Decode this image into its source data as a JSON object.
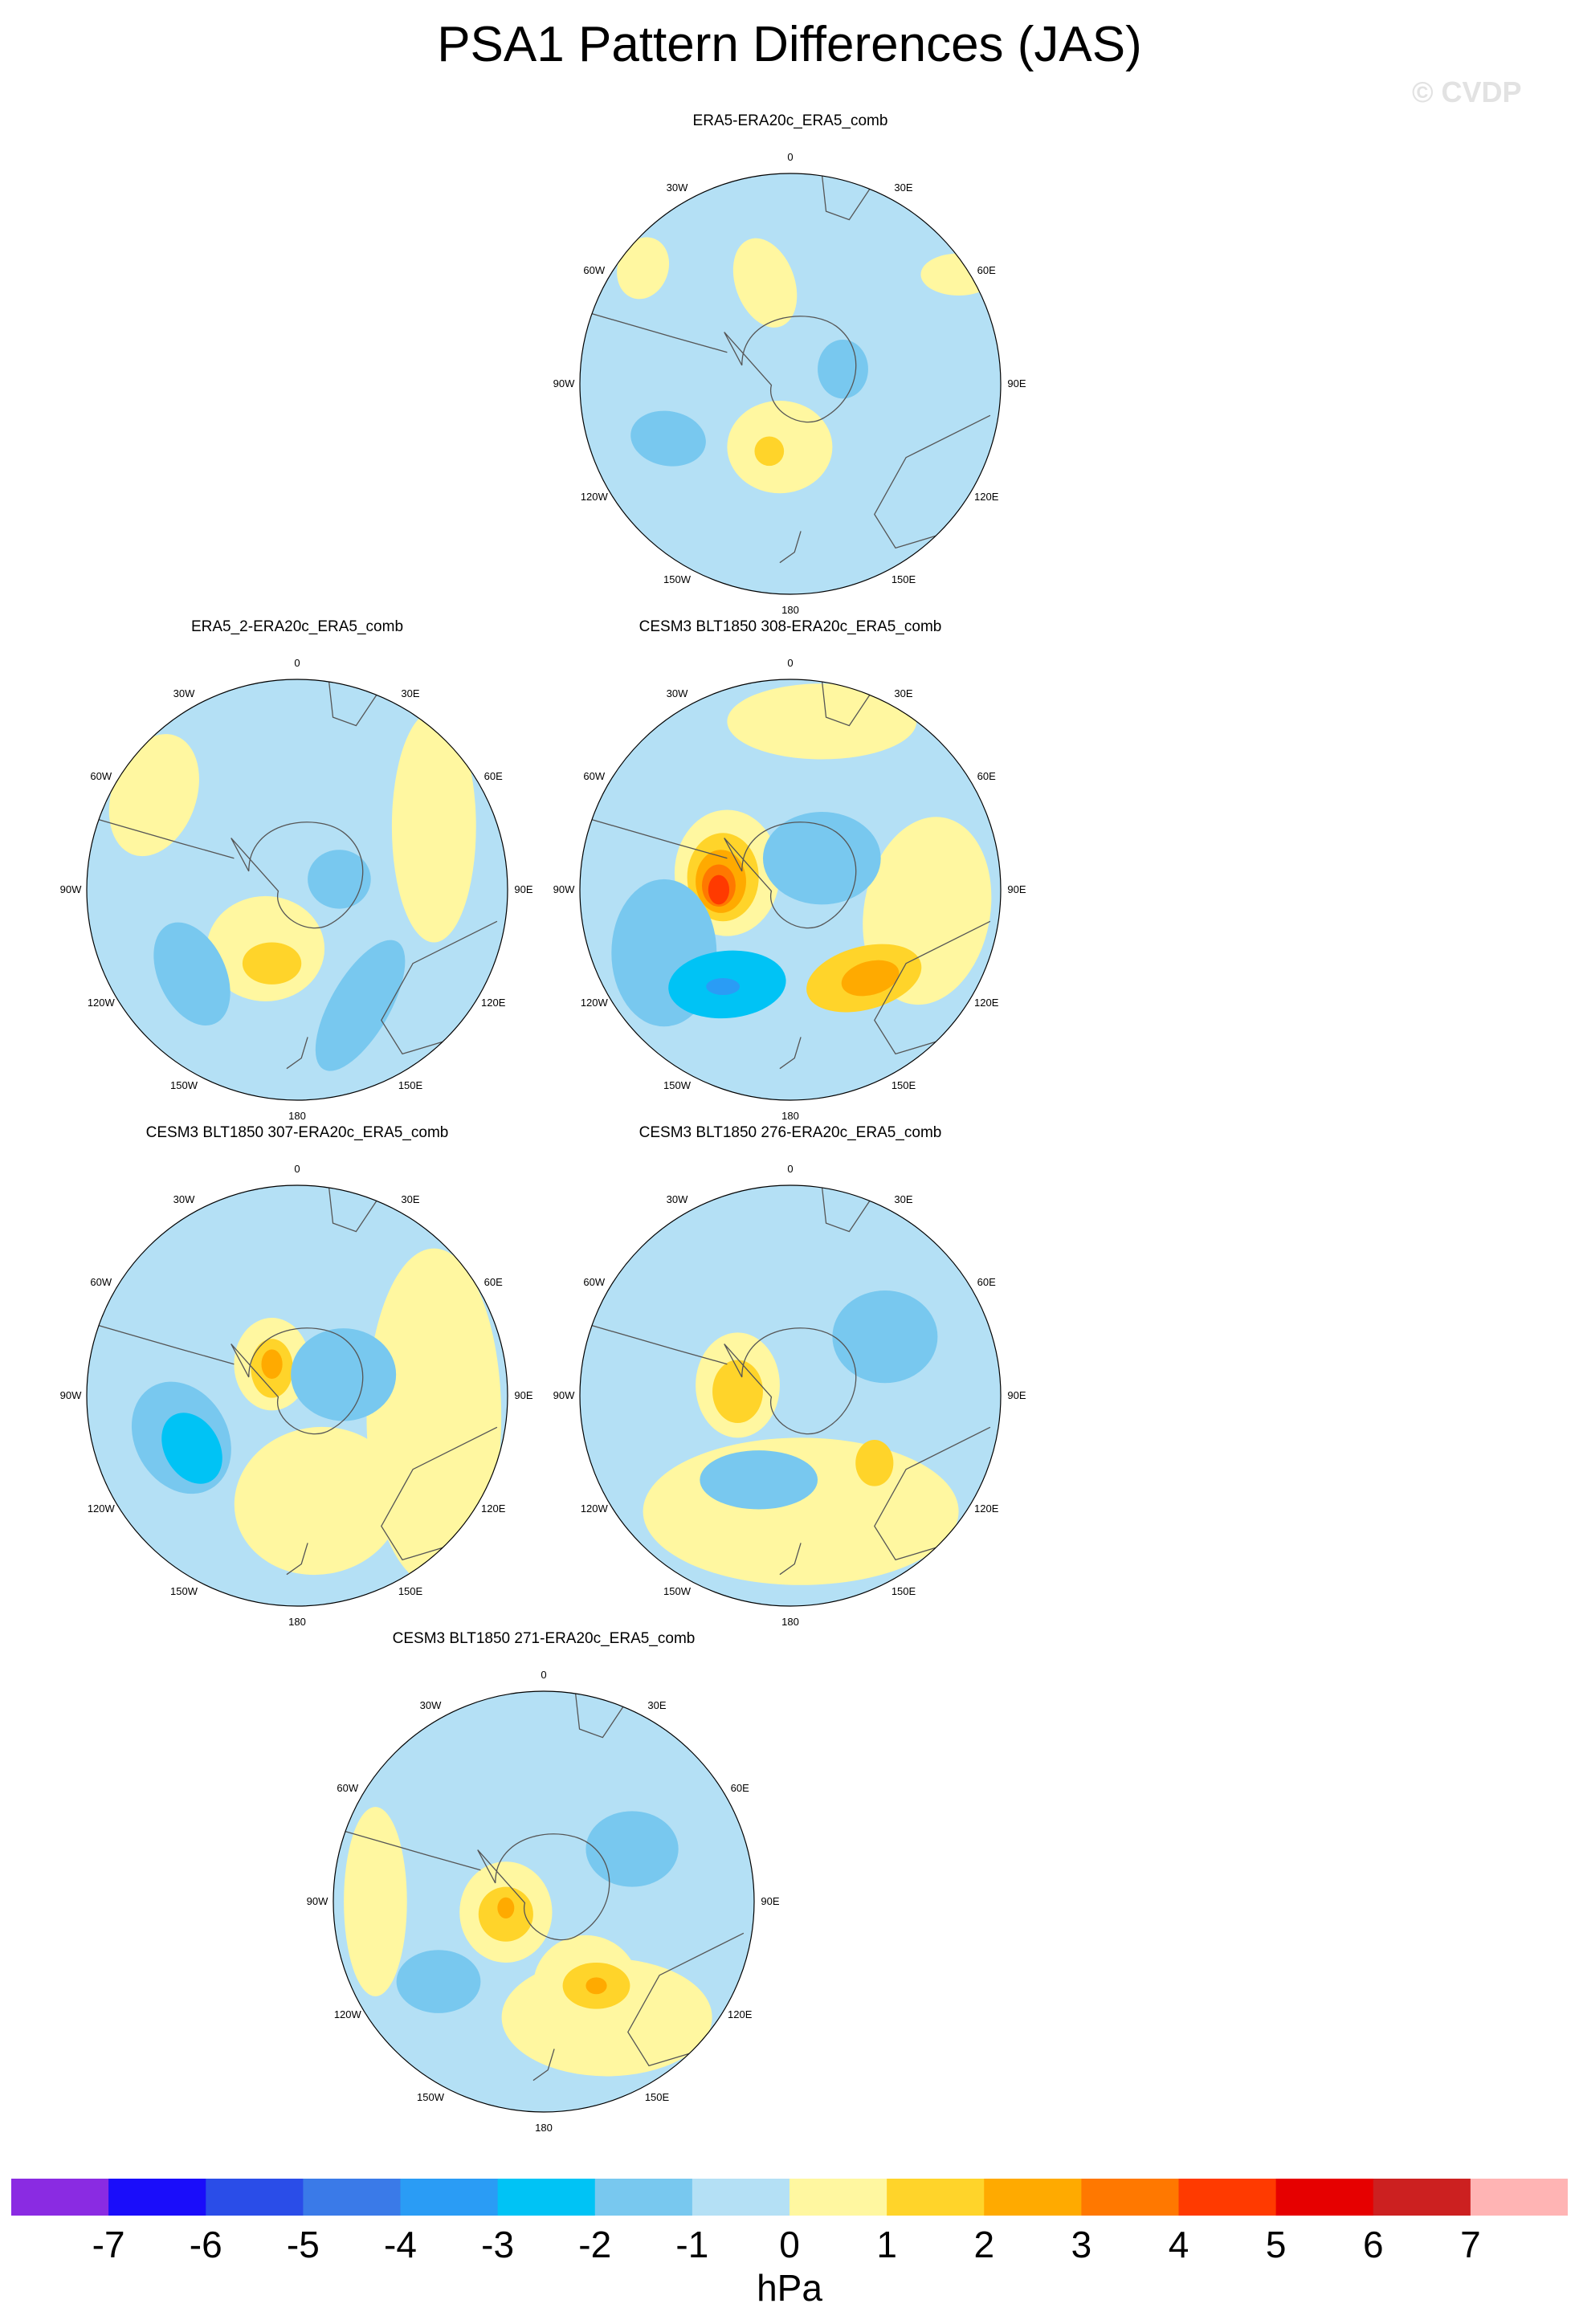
{
  "title": "PSA1 Pattern Differences (JAS)",
  "watermark": "© CVDP",
  "lon_labels": [
    "0",
    "30E",
    "60E",
    "90E",
    "120E",
    "150E",
    "180",
    "150W",
    "120W",
    "90W",
    "60W",
    "30W"
  ],
  "panels": [
    {
      "title": "ERA5-ERA20c_ERA5_comb"
    },
    {
      "title": "ERA5_2-ERA20c_ERA5_comb"
    },
    {
      "title": "CESM3 BLT1850 308-ERA20c_ERA5_comb"
    },
    {
      "title": "CESM3 BLT1850 307-ERA20c_ERA5_comb"
    },
    {
      "title": "CESM3 BLT1850 276-ERA20c_ERA5_comb"
    },
    {
      "title": "CESM3 BLT1850 271-ERA20c_ERA5_comb"
    }
  ],
  "colorbar": {
    "labels": [
      "-7",
      "-6",
      "-5",
      "-4",
      "-3",
      "-2",
      "-1",
      "0",
      "1",
      "2",
      "3",
      "4",
      "5",
      "6",
      "7"
    ],
    "colors": [
      "#8a2be2",
      "#1a0dfa",
      "#2a4de8",
      "#3a7ae8",
      "#2a9cf5",
      "#00c3f5",
      "#78c8ef",
      "#b4e0f5",
      "#fff7a0",
      "#ffd42a",
      "#ffaa00",
      "#ff7800",
      "#ff3a00",
      "#e60000",
      "#cc2020",
      "#ffb4b4"
    ],
    "units": "hPa"
  }
}
